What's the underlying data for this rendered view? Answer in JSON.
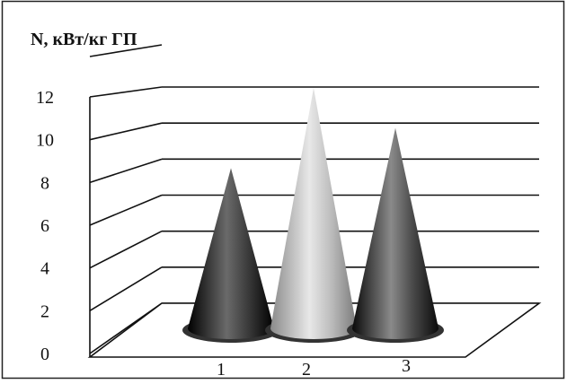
{
  "chart_data": {
    "type": "bar",
    "style": "3d-cone",
    "title": "",
    "ylabel": "N, кВт/кг ГП",
    "xlabel": "",
    "categories": [
      "1",
      "2",
      "3"
    ],
    "values": [
      8,
      12,
      10
    ],
    "ylim": [
      0,
      12
    ],
    "yticks": [
      "0",
      "2",
      "4",
      "6",
      "8",
      "10",
      "12"
    ],
    "grid": true,
    "legend": "none",
    "colors": [
      "#1a1a1a",
      "#9a9a9a",
      "#2e2e2e"
    ]
  }
}
